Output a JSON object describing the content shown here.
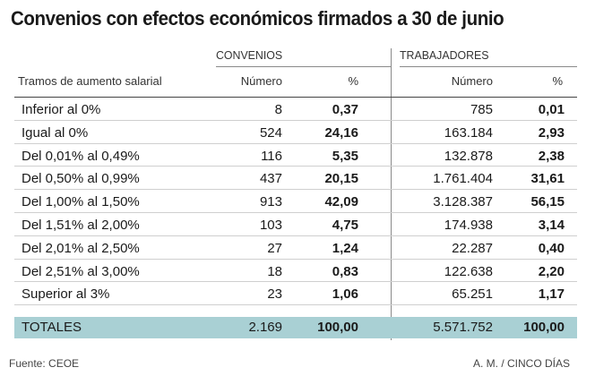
{
  "title": "Convenios con efectos económicos firmados a 30 de junio",
  "groups": {
    "convenios": "CONVENIOS",
    "trabajadores": "TRABAJADORES"
  },
  "headers": {
    "tramos": "Tramos de aumento salarial",
    "numero": "Número",
    "pct": "%",
    "numero2": "Número",
    "pct2": "%"
  },
  "rows": [
    {
      "label": "Inferior al 0%",
      "conv_num": "8",
      "conv_pct": "0,37",
      "trab_num": "785",
      "trab_pct": "0,01"
    },
    {
      "label": "Igual al 0%",
      "conv_num": "524",
      "conv_pct": "24,16",
      "trab_num": "163.184",
      "trab_pct": "2,93"
    },
    {
      "label": "Del 0,01% al 0,49%",
      "conv_num": "116",
      "conv_pct": "5,35",
      "trab_num": "132.878",
      "trab_pct": "2,38"
    },
    {
      "label": "Del 0,50% al 0,99%",
      "conv_num": "437",
      "conv_pct": "20,15",
      "trab_num": "1.761.404",
      "trab_pct": "31,61"
    },
    {
      "label": "Del 1,00% al 1,50%",
      "conv_num": "913",
      "conv_pct": "42,09",
      "trab_num": "3.128.387",
      "trab_pct": "56,15"
    },
    {
      "label": "Del 1,51% al 2,00%",
      "conv_num": "103",
      "conv_pct": "4,75",
      "trab_num": "174.938",
      "trab_pct": "3,14"
    },
    {
      "label": "Del 2,01% al 2,50%",
      "conv_num": "27",
      "conv_pct": "1,24",
      "trab_num": "22.287",
      "trab_pct": "0,40"
    },
    {
      "label": "Del 2,51% al 3,00%",
      "conv_num": "18",
      "conv_pct": "0,83",
      "trab_num": "122.638",
      "trab_pct": "2,20"
    },
    {
      "label": "Superior al 3%",
      "conv_num": "23",
      "conv_pct": "1,06",
      "trab_num": "65.251",
      "trab_pct": "1,17"
    }
  ],
  "totals": {
    "label": "TOTALES",
    "conv_num": "2.169",
    "conv_pct": "100,00",
    "trab_num": "5.571.752",
    "trab_pct": "100,00"
  },
  "footer": {
    "source": "Fuente: CEOE",
    "credit": "A. M. / CINCO DÍAS"
  },
  "colors": {
    "totals_bg": "#a9d0d4"
  }
}
